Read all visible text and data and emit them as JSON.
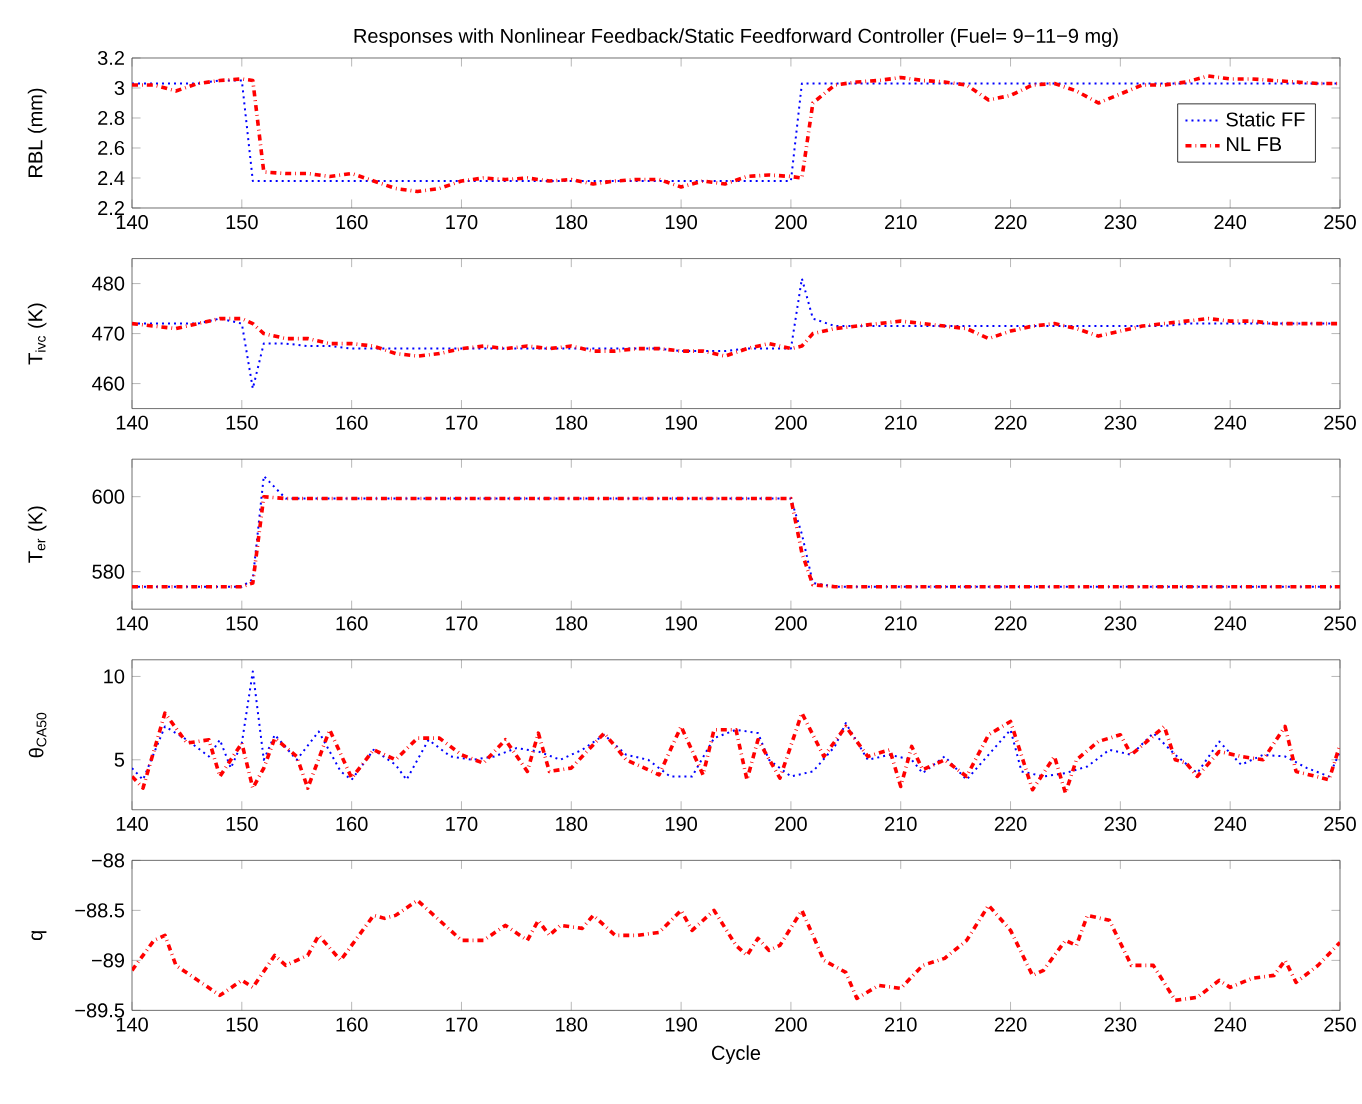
{
  "chart_data": [
    {
      "type": "line",
      "title": "Responses with Nonlinear Feedback/Static Feedforward Controller (Fuel= 9−11−9 mg)",
      "ylabel": "RBL (mm)",
      "x": [
        140,
        142,
        144,
        146,
        148,
        150,
        151,
        152,
        154,
        156,
        158,
        160,
        162,
        164,
        166,
        168,
        170,
        172,
        174,
        176,
        178,
        180,
        182,
        184,
        186,
        188,
        190,
        192,
        194,
        196,
        198,
        200,
        201,
        202,
        204,
        206,
        208,
        210,
        212,
        214,
        216,
        218,
        220,
        222,
        224,
        226,
        228,
        230,
        232,
        234,
        236,
        238,
        240,
        242,
        244,
        246,
        248,
        250
      ],
      "xlim": [
        140,
        250
      ],
      "xticks": [
        140,
        150,
        160,
        170,
        180,
        190,
        200,
        210,
        220,
        230,
        240,
        250
      ],
      "ylim": [
        2.2,
        3.2
      ],
      "yticks": [
        2.2,
        2.4,
        2.6,
        2.8,
        3,
        3.2
      ],
      "legend": "right",
      "marker": "none",
      "series": [
        {
          "name": "Static FF",
          "color": "#0000ff",
          "line_style": "dotted",
          "values": [
            3.03,
            3.03,
            3.03,
            3.03,
            3.05,
            3.05,
            2.38,
            2.38,
            2.38,
            2.38,
            2.38,
            2.38,
            2.38,
            2.38,
            2.38,
            2.38,
            2.38,
            2.38,
            2.38,
            2.38,
            2.38,
            2.38,
            2.38,
            2.38,
            2.38,
            2.38,
            2.38,
            2.38,
            2.38,
            2.38,
            2.38,
            2.38,
            3.03,
            3.03,
            3.03,
            3.03,
            3.03,
            3.03,
            3.03,
            3.03,
            3.03,
            3.03,
            3.03,
            3.03,
            3.03,
            3.03,
            3.03,
            3.03,
            3.03,
            3.03,
            3.03,
            3.03,
            3.03,
            3.03,
            3.03,
            3.03,
            3.03,
            3.03
          ]
        },
        {
          "name": "NL FB",
          "color": "#ff0000",
          "line_style": "dashdot",
          "values": [
            3.02,
            3.02,
            2.98,
            3.03,
            3.05,
            3.06,
            3.05,
            2.44,
            2.43,
            2.43,
            2.41,
            2.43,
            2.38,
            2.33,
            2.31,
            2.33,
            2.38,
            2.4,
            2.39,
            2.4,
            2.38,
            2.39,
            2.36,
            2.38,
            2.39,
            2.39,
            2.34,
            2.38,
            2.36,
            2.41,
            2.42,
            2.41,
            2.4,
            2.9,
            3.02,
            3.04,
            3.05,
            3.07,
            3.05,
            3.04,
            3.02,
            2.92,
            2.95,
            3.02,
            3.03,
            2.98,
            2.9,
            2.96,
            3.02,
            3.02,
            3.04,
            3.08,
            3.06,
            3.06,
            3.05,
            3.04,
            3.03,
            3.03
          ]
        }
      ]
    },
    {
      "type": "line",
      "ylabel": "T$_{ivc}$ (K)",
      "x": [
        140,
        142,
        144,
        146,
        148,
        150,
        151,
        152,
        154,
        156,
        158,
        160,
        162,
        164,
        166,
        168,
        170,
        172,
        174,
        176,
        178,
        180,
        182,
        184,
        186,
        188,
        190,
        192,
        194,
        196,
        198,
        200,
        201,
        202,
        204,
        206,
        208,
        210,
        212,
        214,
        216,
        218,
        220,
        222,
        224,
        226,
        228,
        230,
        232,
        234,
        236,
        238,
        240,
        242,
        244,
        246,
        248,
        250
      ],
      "xlim": [
        140,
        250
      ],
      "xticks": [
        140,
        150,
        160,
        170,
        180,
        190,
        200,
        210,
        220,
        230,
        240,
        250
      ],
      "ylim": [
        455,
        485
      ],
      "yticks": [
        460,
        470,
        480
      ],
      "marker": "none",
      "series": [
        {
          "color": "#0000ff",
          "line_style": "dotted",
          "values": [
            472,
            472,
            472,
            472,
            473,
            472,
            459,
            468,
            468,
            467.5,
            467.5,
            467,
            467,
            467,
            467,
            467,
            467,
            467,
            467,
            467,
            467,
            467,
            467,
            467,
            467,
            467,
            466.5,
            466.5,
            466.5,
            467,
            467,
            467,
            481,
            473,
            471.5,
            471.5,
            471.5,
            471.5,
            471.5,
            471.5,
            471.5,
            471.5,
            471.5,
            471.5,
            471.5,
            471.5,
            471.5,
            471.5,
            471.5,
            471.5,
            472,
            472,
            472,
            472,
            472,
            472,
            472,
            472
          ]
        },
        {
          "color": "#ff0000",
          "line_style": "dashdot",
          "values": [
            472,
            471.5,
            471,
            472,
            473,
            473,
            472,
            470,
            469,
            469,
            468,
            468,
            467.5,
            466,
            465.5,
            466,
            467,
            467.5,
            467,
            467.5,
            467,
            467.5,
            466.5,
            466.5,
            467,
            467,
            466.5,
            466.5,
            465.5,
            467,
            468,
            467,
            467.5,
            470,
            471,
            471.5,
            472,
            472.5,
            472,
            471.5,
            471,
            469,
            470.5,
            471.5,
            472,
            471,
            469.5,
            470.5,
            471.5,
            472,
            472.5,
            473,
            472.5,
            472.5,
            472,
            472,
            472,
            472
          ]
        }
      ]
    },
    {
      "type": "line",
      "ylabel": "T$_{er}$ (K)",
      "x": [
        140,
        142,
        144,
        146,
        148,
        150,
        151,
        152,
        154,
        156,
        158,
        160,
        162,
        164,
        166,
        168,
        170,
        172,
        174,
        176,
        178,
        180,
        182,
        184,
        186,
        188,
        190,
        192,
        194,
        196,
        198,
        200,
        201,
        202,
        204,
        206,
        208,
        210,
        212,
        214,
        216,
        218,
        220,
        222,
        224,
        226,
        228,
        230,
        232,
        234,
        236,
        238,
        240,
        242,
        244,
        246,
        248,
        250
      ],
      "xlim": [
        140,
        250
      ],
      "xticks": [
        140,
        150,
        160,
        170,
        180,
        190,
        200,
        210,
        220,
        230,
        240,
        250
      ],
      "ylim": [
        570,
        610
      ],
      "yticks": [
        580,
        600
      ],
      "marker": "none",
      "series": [
        {
          "color": "#0000ff",
          "line_style": "dotted",
          "values": [
            576,
            576,
            576,
            576,
            576,
            576,
            578,
            605.5,
            599.5,
            599.5,
            599.5,
            599.5,
            599.5,
            599.5,
            599.5,
            599.5,
            599.5,
            599.5,
            599.5,
            599.5,
            599.5,
            599.5,
            599.5,
            599.5,
            599.5,
            599.5,
            599.5,
            599.5,
            599.5,
            599.5,
            599.5,
            599.5,
            590,
            577,
            576,
            576,
            576,
            576,
            576,
            576,
            576,
            576,
            576,
            576,
            576,
            576,
            576,
            576,
            576,
            576,
            576,
            576,
            576,
            576,
            576,
            576,
            576,
            576
          ]
        },
        {
          "color": "#ff0000",
          "line_style": "dashdot",
          "values": [
            576,
            576,
            576,
            576,
            576,
            576,
            577,
            600,
            599.5,
            599.5,
            599.5,
            599.5,
            599.5,
            599.5,
            599.5,
            599.5,
            599.5,
            599.5,
            599.5,
            599.5,
            599.5,
            599.5,
            599.5,
            599.5,
            599.5,
            599.5,
            599.5,
            599.5,
            599.5,
            599.5,
            599.5,
            599.5,
            585,
            576.5,
            576,
            576,
            576,
            576,
            576,
            576,
            576,
            576,
            576,
            576,
            576,
            576,
            576,
            576,
            576,
            576,
            576,
            576,
            576,
            576,
            576,
            576,
            576,
            576
          ]
        }
      ]
    },
    {
      "type": "line",
      "ylabel": "θ$_{CA50}$",
      "xlim": [
        140,
        250
      ],
      "xticks": [
        140,
        150,
        160,
        170,
        180,
        190,
        200,
        210,
        220,
        230,
        240,
        250
      ],
      "ylim": [
        2,
        11
      ],
      "yticks": [
        5,
        10
      ],
      "marker": "none",
      "series": [
        {
          "color": "#0000ff",
          "line_style": "dotted",
          "x": [
            140,
            141,
            143,
            145,
            147,
            148,
            149,
            150,
            151,
            152,
            153,
            155,
            157,
            159,
            160,
            162,
            164,
            165,
            167,
            169,
            171,
            173,
            175,
            177,
            179,
            181,
            183,
            185,
            187,
            189,
            191,
            193,
            195,
            197,
            198,
            200,
            202,
            204,
            205,
            207,
            209,
            211,
            212,
            214,
            216,
            218,
            220,
            221,
            223,
            225,
            227,
            229,
            231,
            233,
            235,
            237,
            239,
            241,
            243,
            245,
            247,
            249,
            250
          ],
          "values": [
            4.5,
            3.8,
            7,
            6.2,
            5.2,
            6.2,
            4.5,
            6,
            10.3,
            5,
            6.5,
            5,
            6.7,
            4.3,
            3.8,
            5.6,
            4.7,
            3.8,
            6.2,
            5.2,
            5,
            5.2,
            5.7,
            5.5,
            5,
            5.6,
            6.5,
            5.3,
            5,
            4,
            4,
            6.3,
            6.8,
            6.6,
            5,
            4,
            4.3,
            5.8,
            7.2,
            5,
            5.3,
            5,
            4.2,
            5.2,
            3.8,
            5.3,
            6.8,
            4.3,
            4,
            4.2,
            4.6,
            5.6,
            5.3,
            6.6,
            5.3,
            4.2,
            6.1,
            4.7,
            5.3,
            5.2,
            4.5,
            4,
            5.5
          ]
        },
        {
          "color": "#ff0000",
          "line_style": "dashdot",
          "x": [
            140,
            141,
            143,
            145,
            147,
            148,
            150,
            151,
            152,
            153,
            155,
            156,
            158,
            160,
            162,
            164,
            166,
            168,
            170,
            172,
            174,
            176,
            177,
            178,
            180,
            183,
            185,
            188,
            190,
            192,
            193,
            195,
            196,
            197,
            199,
            201,
            203,
            205,
            207,
            209,
            210,
            211,
            212,
            214,
            216,
            218,
            220,
            222,
            224,
            225,
            226,
            228,
            230,
            231,
            234,
            235,
            236,
            237,
            239,
            241,
            243,
            245,
            246,
            249,
            250
          ],
          "values": [
            4,
            3.3,
            7.8,
            6,
            6.2,
            4,
            6,
            3.3,
            4.5,
            6.3,
            5.2,
            3.3,
            6.8,
            3.9,
            5.6,
            5,
            6.3,
            6.3,
            5.3,
            4.8,
            6.2,
            4.3,
            6.6,
            4.3,
            4.5,
            6.6,
            5,
            4.1,
            7,
            4.1,
            6.8,
            6.8,
            3.8,
            6.2,
            3.9,
            7.8,
            5.2,
            7,
            5.2,
            5.6,
            3.4,
            5.8,
            4.4,
            5,
            4,
            6.5,
            7.3,
            3.2,
            5.2,
            3,
            5,
            6.1,
            6.5,
            5.3,
            7,
            5,
            4.8,
            4,
            5.5,
            5.2,
            5,
            7,
            4.3,
            3.8,
            5.9
          ]
        }
      ]
    },
    {
      "type": "line",
      "ylabel": "q",
      "xlabel": "Cycle",
      "xlim": [
        140,
        250
      ],
      "xticks": [
        140,
        150,
        160,
        170,
        180,
        190,
        200,
        210,
        220,
        230,
        240,
        250
      ],
      "ylim": [
        -89.5,
        -88
      ],
      "yticks": [
        {
          "value": -89.5,
          "label": "−89.5"
        },
        {
          "value": -89,
          "label": "−89"
        },
        {
          "value": -88.5,
          "label": "−88.5"
        },
        {
          "value": -88,
          "label": "−88"
        }
      ],
      "marker": "none",
      "series": [
        {
          "color": "#ff0000",
          "line_style": "dashdot",
          "x": [
            140,
            142,
            143,
            144,
            146,
            148,
            150,
            151,
            153,
            154,
            156,
            157,
            159,
            160,
            162,
            163,
            164,
            166,
            168,
            170,
            172,
            174,
            176,
            177,
            178,
            179,
            181,
            182,
            184,
            186,
            188,
            190,
            191,
            193,
            195,
            196,
            197,
            198,
            199,
            201,
            203,
            205,
            206,
            208,
            210,
            212,
            214,
            216,
            218,
            220,
            222,
            223,
            225,
            226,
            227,
            229,
            231,
            233,
            235,
            237,
            239,
            240,
            242,
            244,
            245,
            246,
            248,
            250
          ],
          "values": [
            -89.1,
            -88.8,
            -88.75,
            -89.05,
            -89.2,
            -89.35,
            -89.2,
            -89.27,
            -88.95,
            -89.05,
            -88.95,
            -88.75,
            -89.0,
            -88.85,
            -88.55,
            -88.58,
            -88.55,
            -88.4,
            -88.6,
            -88.8,
            -88.8,
            -88.65,
            -88.8,
            -88.6,
            -88.75,
            -88.65,
            -88.68,
            -88.55,
            -88.75,
            -88.75,
            -88.72,
            -88.5,
            -88.7,
            -88.5,
            -88.85,
            -88.95,
            -88.78,
            -88.9,
            -88.85,
            -88.5,
            -89.0,
            -89.12,
            -89.38,
            -89.25,
            -89.28,
            -89.05,
            -88.98,
            -88.8,
            -88.45,
            -88.7,
            -89.15,
            -89.1,
            -88.8,
            -88.85,
            -88.55,
            -88.6,
            -89.05,
            -89.05,
            -89.4,
            -89.37,
            -89.2,
            -89.27,
            -89.18,
            -89.15,
            -89.0,
            -89.22,
            -89.05,
            -88.82
          ]
        }
      ]
    }
  ]
}
